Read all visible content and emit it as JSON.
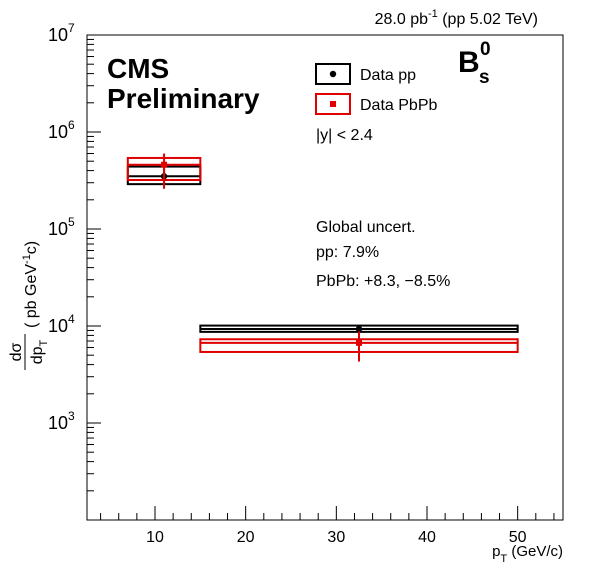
{
  "chart_data": {
    "type": "scatter",
    "title": "",
    "lumi_label": "28.0 pb",
    "lumi_exp": "-1",
    "lumi_rest": " (pp 5.02 TeV)",
    "experiment": "CMS",
    "status": "Preliminary",
    "particle_main": "B",
    "particle_sub": "s",
    "particle_sup": "0",
    "xlabel_main": "p",
    "xlabel_sub": "T",
    "xlabel_unit": " (GeV/c)",
    "ylabel_num": "dσ",
    "ylabel_den": "dp",
    "ylabel_den_sub": "T",
    "ylabel_unit_a": "( pb GeV",
    "ylabel_unit_exp": "-1",
    "ylabel_unit_b": "c)",
    "xlim": [
      2.5,
      55
    ],
    "ylim_log10": [
      2.0,
      7.0
    ],
    "ylog": true,
    "grid": false,
    "x_ticks": [
      10,
      20,
      30,
      40,
      50
    ],
    "y_tick_labels": [
      {
        "base": "10",
        "exp": "3",
        "value": 1000
      },
      {
        "base": "10",
        "exp": "4",
        "value": 10000
      },
      {
        "base": "10",
        "exp": "5",
        "value": 100000
      },
      {
        "base": "10",
        "exp": "6",
        "value": 1000000
      },
      {
        "base": "10",
        "exp": "7",
        "value": 10000000
      }
    ],
    "legend_placement": "top-right",
    "legend": [
      {
        "label": "Data pp",
        "color": "#000000",
        "marker": "circle"
      },
      {
        "label": "Data PbPb",
        "color": "#e00000",
        "marker": "square"
      }
    ],
    "annotations": {
      "rapidity": "|y| < 2.4",
      "global_title": "Global uncert.",
      "global_pp": "pp: 7.9%",
      "global_pbpb": "PbPb: +8.3, −8.5%"
    },
    "series": [
      {
        "name": "Data pp",
        "color": "#000000",
        "points": [
          {
            "x": 11,
            "xlow": 7,
            "xhigh": 15,
            "y": 350000,
            "stat_low": 290000,
            "stat_high": 420000,
            "syst_low": 290000,
            "syst_high": 440000
          },
          {
            "x": 32.5,
            "xlow": 15,
            "xhigh": 50,
            "y": 9300,
            "stat_low": 8600,
            "stat_high": 10000,
            "syst_low": 8700,
            "syst_high": 10100
          }
        ]
      },
      {
        "name": "Data PbPb",
        "color": "#e00000",
        "points": [
          {
            "x": 11,
            "xlow": 7,
            "xhigh": 15,
            "y": 460000,
            "stat_low": 260000,
            "stat_high": 600000,
            "syst_low": 320000,
            "syst_high": 540000
          },
          {
            "x": 32.5,
            "xlow": 15,
            "xhigh": 50,
            "y": 6700,
            "stat_low": 4300,
            "stat_high": 8800,
            "syst_low": 5400,
            "syst_high": 7300
          }
        ]
      }
    ]
  }
}
